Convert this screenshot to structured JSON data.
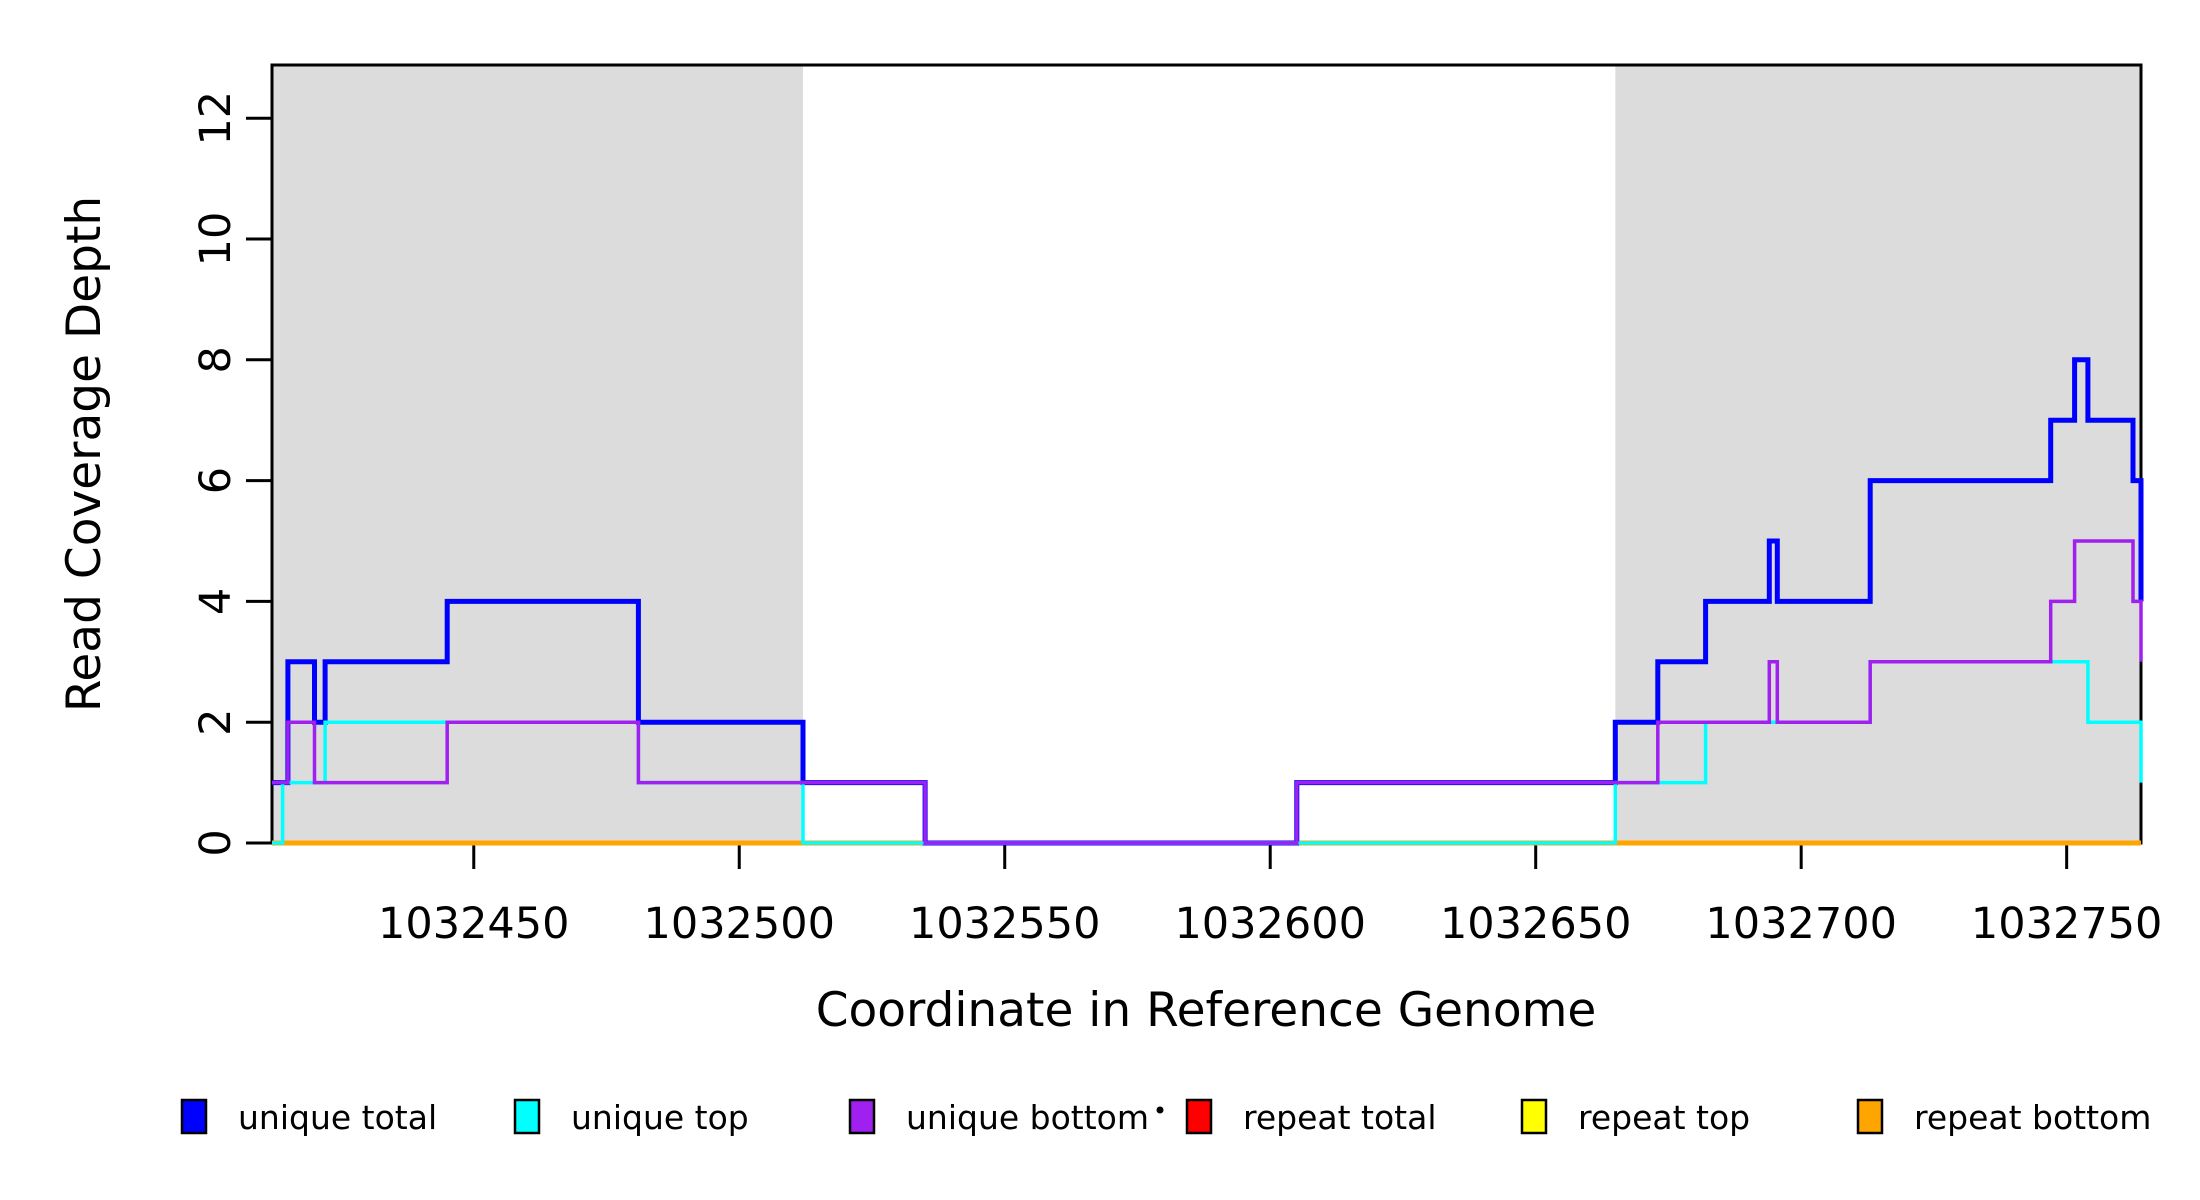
{
  "chart_data": {
    "type": "line",
    "subtype": "step",
    "title": "",
    "xlabel": "Coordinate in Reference Genome",
    "ylabel": "Read Coverage Depth",
    "xlim": [
      1032412,
      1032764
    ],
    "ylim": [
      0,
      13
    ],
    "x_ticks": [
      1032450,
      1032500,
      1032550,
      1032600,
      1032650,
      1032700,
      1032750
    ],
    "y_ticks": [
      0,
      2,
      4,
      6,
      8,
      10,
      12
    ],
    "grid": false,
    "legend_position": "bottom",
    "shaded_regions": [
      {
        "name": "left-gray-region",
        "x0": 1032412,
        "x1": 1032512,
        "color": "#DCDCDC"
      },
      {
        "name": "right-gray-region",
        "x0": 1032665,
        "x1": 1032764,
        "color": "#DCDCDC"
      }
    ],
    "series": [
      {
        "name": "repeat total",
        "color": "#FF0000",
        "width": 3,
        "points": [
          [
            1032412,
            0
          ],
          [
            1032764,
            0
          ]
        ]
      },
      {
        "name": "repeat top",
        "color": "#FFFF00",
        "width": 3,
        "points": [
          [
            1032412,
            0
          ],
          [
            1032764,
            0
          ]
        ]
      },
      {
        "name": "repeat bottom",
        "color": "#FFA500",
        "width": 5,
        "points": [
          [
            1032412,
            0
          ],
          [
            1032764,
            0
          ]
        ]
      },
      {
        "name": "unique total",
        "color": "#0000FF",
        "width": 5,
        "points": [
          [
            1032412,
            1
          ],
          [
            1032415,
            3
          ],
          [
            1032420,
            2
          ],
          [
            1032422,
            3
          ],
          [
            1032445,
            4
          ],
          [
            1032481,
            2
          ],
          [
            1032512,
            1
          ],
          [
            1032535,
            0
          ],
          [
            1032605,
            1
          ],
          [
            1032665,
            2
          ],
          [
            1032673,
            3
          ],
          [
            1032682,
            4
          ],
          [
            1032694,
            5
          ],
          [
            1032695.5,
            4
          ],
          [
            1032713,
            6
          ],
          [
            1032747,
            7
          ],
          [
            1032751.5,
            8
          ],
          [
            1032754,
            7
          ],
          [
            1032762.5,
            6
          ],
          [
            1032764,
            4
          ]
        ]
      },
      {
        "name": "unique top",
        "color": "#00FFFF",
        "width": 3.5,
        "points": [
          [
            1032412,
            0
          ],
          [
            1032414,
            1
          ],
          [
            1032422,
            2
          ],
          [
            1032481,
            1
          ],
          [
            1032512,
            0
          ],
          [
            1032665,
            1
          ],
          [
            1032682,
            2
          ],
          [
            1032713,
            3
          ],
          [
            1032754,
            2
          ],
          [
            1032764,
            1
          ]
        ]
      },
      {
        "name": "unique bottom",
        "color": "#A020F0",
        "width": 3.5,
        "points": [
          [
            1032412,
            1
          ],
          [
            1032415,
            2
          ],
          [
            1032420,
            1
          ],
          [
            1032445,
            2
          ],
          [
            1032481,
            1
          ],
          [
            1032535,
            0
          ],
          [
            1032605,
            1
          ],
          [
            1032673,
            2
          ],
          [
            1032694,
            3
          ],
          [
            1032695.5,
            2
          ],
          [
            1032713,
            3
          ],
          [
            1032747,
            4
          ],
          [
            1032751.5,
            5
          ],
          [
            1032762.5,
            4
          ],
          [
            1032764,
            3
          ]
        ]
      }
    ],
    "legend": {
      "items": [
        {
          "label": "unique total",
          "color": "#0000FF"
        },
        {
          "label": "unique top",
          "color": "#00FFFF"
        },
        {
          "label": "unique bottom",
          "color": "#A020F0"
        },
        {
          "label": "repeat total",
          "color": "#FF0000"
        },
        {
          "label": "repeat top",
          "color": "#FFFF00"
        },
        {
          "label": "repeat bottom",
          "color": "#FFA500"
        }
      ]
    },
    "axis_color": "#000000"
  }
}
